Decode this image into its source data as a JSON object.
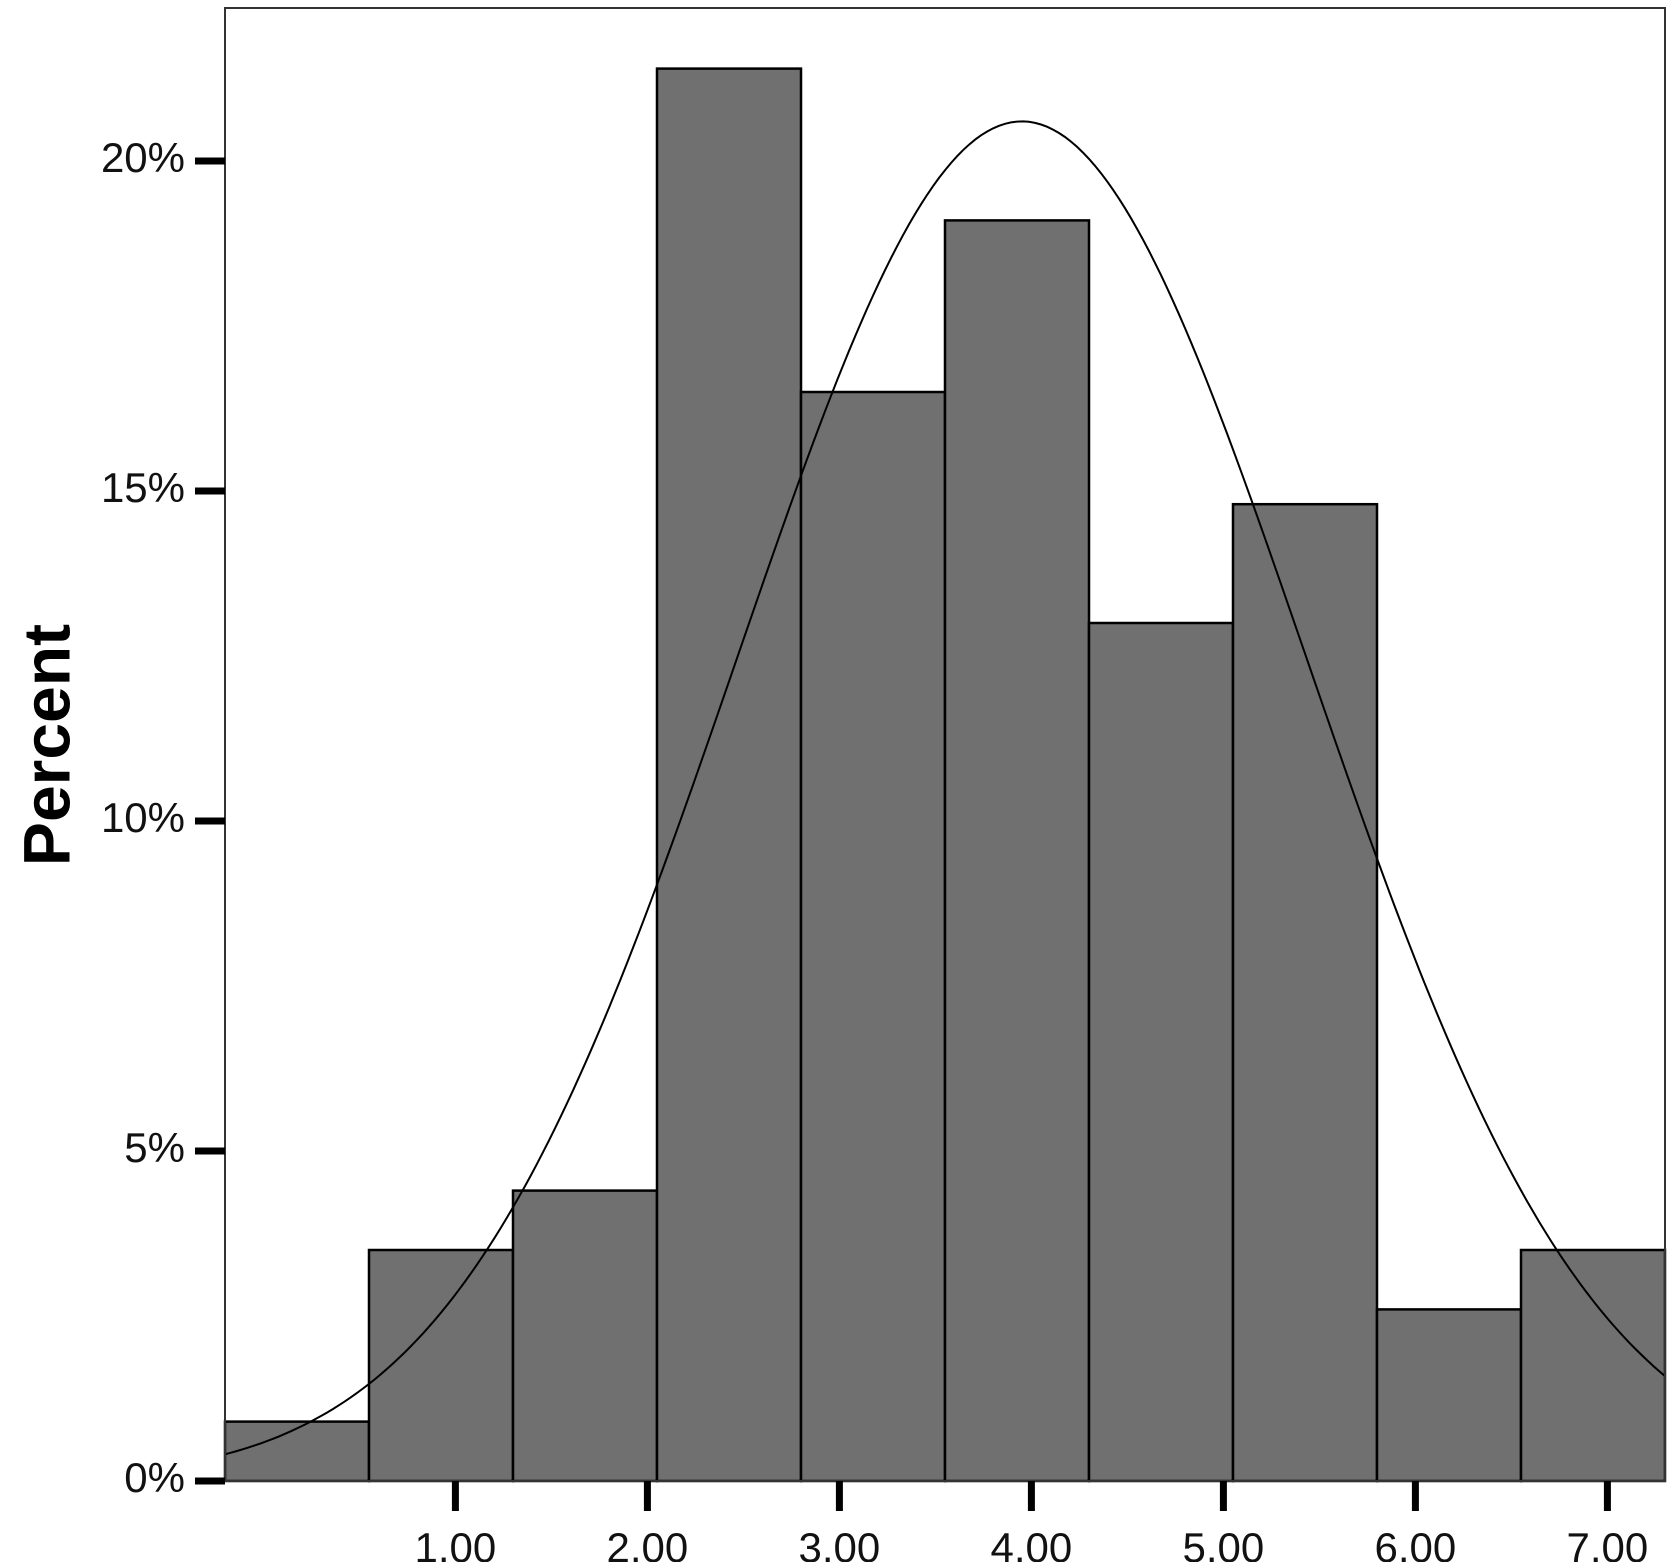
{
  "chart_data": {
    "type": "bar",
    "subtype": "histogram",
    "ylabel": "Percent",
    "xlabel": "",
    "title": "",
    "xlim": [
      -0.2,
      7.3
    ],
    "ylim": [
      0,
      22.5
    ],
    "x_ticks": [
      1,
      2,
      3,
      4,
      5,
      6,
      7
    ],
    "x_tick_labels": [
      "1.00",
      "2.00",
      "3.00",
      "4.00",
      "5.00",
      "6.00",
      "7.00"
    ],
    "y_ticks": [
      0,
      5,
      10,
      15,
      20
    ],
    "y_tick_labels": [
      "0%",
      "5%",
      "10%",
      "15%",
      "20%"
    ],
    "bins": [
      {
        "start": -0.2,
        "end": 0.55,
        "value": 0.9
      },
      {
        "start": 0.55,
        "end": 1.3,
        "value": 3.5
      },
      {
        "start": 1.3,
        "end": 2.05,
        "value": 4.4
      },
      {
        "start": 2.05,
        "end": 2.8,
        "value": 21.4
      },
      {
        "start": 2.8,
        "end": 3.55,
        "value": 16.5
      },
      {
        "start": 3.55,
        "end": 4.3,
        "value": 19.1
      },
      {
        "start": 4.3,
        "end": 5.05,
        "value": 13.0
      },
      {
        "start": 5.05,
        "end": 5.8,
        "value": 14.8
      },
      {
        "start": 5.8,
        "end": 6.55,
        "value": 2.6
      },
      {
        "start": 6.55,
        "end": 7.3,
        "value": 3.5
      }
    ],
    "normal_curve": {
      "mean": 3.95,
      "sd": 1.48,
      "peak": 20.6
    },
    "grid": false,
    "legend": "none",
    "colors": {
      "bar_fill": "#707070",
      "bar_edge": "#000000",
      "curve": "#000000",
      "background": "#ffffff"
    }
  }
}
